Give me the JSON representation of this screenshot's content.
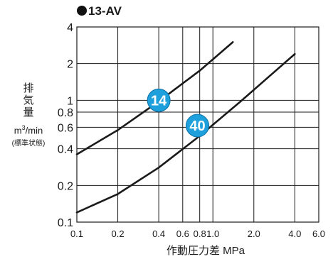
{
  "chart_data": {
    "type": "line",
    "title": "13-AV",
    "ylabel": "排\n気\n量",
    "yunit_base": "m",
    "yunit_exp": "3",
    "yunit_rest": "/min",
    "ycondition": "(標準状態)",
    "xlabel": "作動圧力差 MPa",
    "xscale": "log",
    "yscale": "log",
    "xlim": [
      0.1,
      6.0
    ],
    "ylim": [
      0.1,
      4
    ],
    "xticks": [
      {
        "value": 0.1,
        "label": "0.1"
      },
      {
        "value": 0.2,
        "label": "0.2"
      },
      {
        "value": 0.4,
        "label": "0.4"
      },
      {
        "value": 0.6,
        "label": "0.6"
      },
      {
        "value": 0.8,
        "label": "0.8"
      },
      {
        "value": 1.0,
        "label": "1.0"
      },
      {
        "value": 2.0,
        "label": "2.0"
      },
      {
        "value": 4.0,
        "label": "4.0"
      },
      {
        "value": 6.0,
        "label": "6.0"
      }
    ],
    "yticks": [
      {
        "value": 0.1,
        "label": "0.1"
      },
      {
        "value": 0.2,
        "label": "0.2"
      },
      {
        "value": 0.4,
        "label": "0.4"
      },
      {
        "value": 0.6,
        "label": "0.6"
      },
      {
        "value": 0.8,
        "label": "0.8"
      },
      {
        "value": 1,
        "label": "1"
      },
      {
        "value": 2,
        "label": "2"
      },
      {
        "value": 4,
        "label": "4"
      }
    ],
    "grid": true,
    "series": [
      {
        "name": "14",
        "x": [
          0.1,
          0.2,
          0.4,
          0.8,
          1.4
        ],
        "y": [
          0.36,
          0.57,
          0.98,
          1.75,
          3.0
        ]
      },
      {
        "name": "40",
        "x": [
          0.1,
          0.2,
          0.4,
          0.8,
          1.6,
          4.0
        ],
        "y": [
          0.12,
          0.17,
          0.28,
          0.51,
          0.98,
          2.4
        ]
      }
    ],
    "badges": [
      {
        "label": "14",
        "x": 0.4,
        "y": 1.0
      },
      {
        "label": "40",
        "x": 0.77,
        "y": 0.62
      }
    ],
    "colors": {
      "line": "#1a1a1a",
      "grid": "#1a1a1a",
      "badge_fill": "#1ea0dc",
      "badge_text": "#ffffff"
    }
  }
}
